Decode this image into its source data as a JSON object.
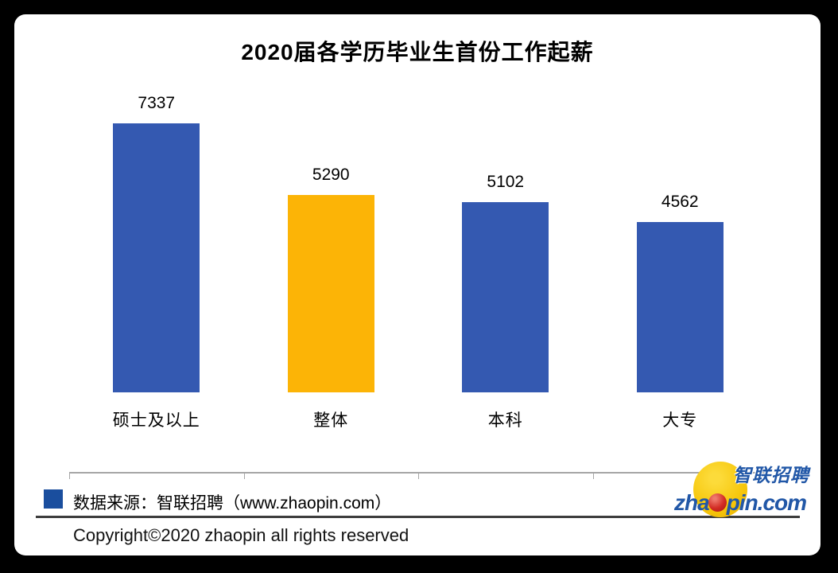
{
  "title": "2020届各学历毕业生首份工作起薪",
  "chart_data": {
    "type": "bar",
    "title": "2020届各学历毕业生首份工作起薪",
    "categories": [
      "硕士及以上",
      "整体",
      "本科",
      "大专"
    ],
    "values": [
      7337,
      5290,
      5102,
      4562
    ],
    "bar_colors": [
      "#3459b1",
      "#fcb406",
      "#3459b1",
      "#3459b1"
    ],
    "xlabel": "",
    "ylabel": "",
    "ylim": [
      0,
      8000
    ],
    "grid": false,
    "legend": "none",
    "value_labels_shown": true
  },
  "footer": {
    "source_label": "数据来源：智联招聘（www.zhaopin.com）",
    "legend_swatch_color": "#1a4e9e",
    "copyright": "Copyright©2020 zhaopin all rights reserved"
  },
  "logo": {
    "chinese_name": "智联招聘",
    "en_prefix": "zha",
    "en_suffix": "pin.com",
    "blue": "#2157a7",
    "yellow": "#f6c60a",
    "red": "#d22c24"
  },
  "colors": {
    "bar_blue": "#3459b1",
    "bar_yellow": "#fcb406",
    "axis_line": "#a6a6a6",
    "card_background": "#ffffff",
    "page_background": "#000000"
  }
}
